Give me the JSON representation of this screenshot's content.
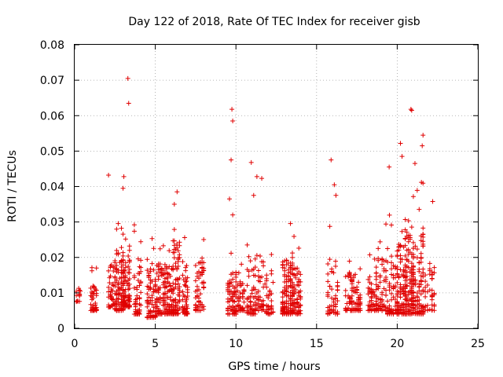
{
  "chart_data": {
    "type": "scatter",
    "title": "Day 122 of 2018, Rate Of TEC Index for receiver gisb",
    "xlabel": "GPS time / hours",
    "ylabel": "ROTI / TECUs",
    "xlim": [
      0,
      25
    ],
    "ylim": [
      0,
      0.08
    ],
    "xticks": [
      0,
      5,
      10,
      15,
      20,
      25
    ],
    "yticks": [
      0,
      0.01,
      0.02,
      0.03,
      0.04,
      0.05,
      0.06,
      0.07,
      0.08
    ],
    "xtick_labels": [
      "0",
      "5",
      "10",
      "15",
      "20",
      "25"
    ],
    "ytick_labels": [
      "0",
      "0.01",
      "0.02",
      "0.03",
      "0.04",
      "0.05",
      "0.06",
      "0.07",
      "0.08"
    ],
    "grid": true,
    "marker": "+",
    "color": "#e00000",
    "clusters": [
      {
        "x0": 0.1,
        "x1": 0.35,
        "ymin": 0.0075,
        "ymax": 0.0125,
        "n": 12
      },
      {
        "x0": 1.0,
        "x1": 1.35,
        "ymin": 0.005,
        "ymax": 0.018,
        "n": 45
      },
      {
        "x0": 2.1,
        "x1": 2.4,
        "ymin": 0.006,
        "ymax": 0.028,
        "n": 35
      },
      {
        "x0": 2.5,
        "x1": 3.0,
        "ymin": 0.005,
        "ymax": 0.035,
        "n": 110
      },
      {
        "x0": 3.0,
        "x1": 3.4,
        "ymin": 0.006,
        "ymax": 0.03,
        "n": 90
      },
      {
        "x0": 3.7,
        "x1": 4.1,
        "ymin": 0.004,
        "ymax": 0.031,
        "n": 60
      },
      {
        "x0": 4.5,
        "x1": 5.0,
        "ymin": 0.003,
        "ymax": 0.029,
        "n": 80
      },
      {
        "x0": 5.1,
        "x1": 5.6,
        "ymin": 0.004,
        "ymax": 0.028,
        "n": 90
      },
      {
        "x0": 5.7,
        "x1": 6.1,
        "ymin": 0.004,
        "ymax": 0.026,
        "n": 70
      },
      {
        "x0": 6.1,
        "x1": 6.5,
        "ymin": 0.004,
        "ymax": 0.039,
        "n": 80
      },
      {
        "x0": 6.7,
        "x1": 7.0,
        "ymin": 0.004,
        "ymax": 0.027,
        "n": 50
      },
      {
        "x0": 7.5,
        "x1": 8.0,
        "ymin": 0.005,
        "ymax": 0.028,
        "n": 60
      },
      {
        "x0": 9.5,
        "x1": 10.0,
        "ymin": 0.004,
        "ymax": 0.024,
        "n": 80
      },
      {
        "x0": 10.1,
        "x1": 10.5,
        "ymin": 0.005,
        "ymax": 0.02,
        "n": 40
      },
      {
        "x0": 10.7,
        "x1": 11.2,
        "ymin": 0.004,
        "ymax": 0.026,
        "n": 60
      },
      {
        "x0": 11.2,
        "x1": 11.7,
        "ymin": 0.005,
        "ymax": 0.031,
        "n": 50
      },
      {
        "x0": 11.8,
        "x1": 12.3,
        "ymin": 0.004,
        "ymax": 0.025,
        "n": 40
      },
      {
        "x0": 12.9,
        "x1": 13.5,
        "ymin": 0.004,
        "ymax": 0.031,
        "n": 160
      },
      {
        "x0": 13.5,
        "x1": 14.0,
        "ymin": 0.004,
        "ymax": 0.026,
        "n": 80
      },
      {
        "x0": 15.7,
        "x1": 16.3,
        "ymin": 0.004,
        "ymax": 0.03,
        "n": 60
      },
      {
        "x0": 16.8,
        "x1": 17.2,
        "ymin": 0.005,
        "ymax": 0.024,
        "n": 40
      },
      {
        "x0": 17.2,
        "x1": 17.7,
        "ymin": 0.005,
        "ymax": 0.022,
        "n": 60
      },
      {
        "x0": 18.2,
        "x1": 18.7,
        "ymin": 0.005,
        "ymax": 0.024,
        "n": 60
      },
      {
        "x0": 18.7,
        "x1": 19.3,
        "ymin": 0.005,
        "ymax": 0.03,
        "n": 70
      },
      {
        "x0": 19.4,
        "x1": 20.0,
        "ymin": 0.004,
        "ymax": 0.036,
        "n": 90
      },
      {
        "x0": 20.0,
        "x1": 20.5,
        "ymin": 0.004,
        "ymax": 0.038,
        "n": 100
      },
      {
        "x0": 20.5,
        "x1": 21.0,
        "ymin": 0.004,
        "ymax": 0.043,
        "n": 120
      },
      {
        "x0": 21.0,
        "x1": 21.6,
        "ymin": 0.004,
        "ymax": 0.042,
        "n": 100
      },
      {
        "x0": 21.6,
        "x1": 22.3,
        "ymin": 0.005,
        "ymax": 0.028,
        "n": 50
      }
    ],
    "outliers": [
      {
        "x": 3.3,
        "y": 0.0705
      },
      {
        "x": 3.35,
        "y": 0.0635
      },
      {
        "x": 9.75,
        "y": 0.0618
      },
      {
        "x": 9.8,
        "y": 0.0585
      },
      {
        "x": 9.7,
        "y": 0.0475
      },
      {
        "x": 9.6,
        "y": 0.0365
      },
      {
        "x": 10.95,
        "y": 0.0468
      },
      {
        "x": 11.3,
        "y": 0.0428
      },
      {
        "x": 11.6,
        "y": 0.0423
      },
      {
        "x": 11.1,
        "y": 0.0375
      },
      {
        "x": 2.1,
        "y": 0.0432
      },
      {
        "x": 3.05,
        "y": 0.0428
      },
      {
        "x": 3.0,
        "y": 0.0395
      },
      {
        "x": 6.35,
        "y": 0.0385
      },
      {
        "x": 15.9,
        "y": 0.0475
      },
      {
        "x": 16.1,
        "y": 0.0405
      },
      {
        "x": 16.2,
        "y": 0.0375
      },
      {
        "x": 20.85,
        "y": 0.0618
      },
      {
        "x": 20.9,
        "y": 0.0615
      },
      {
        "x": 21.6,
        "y": 0.0545
      },
      {
        "x": 21.55,
        "y": 0.0515
      },
      {
        "x": 20.2,
        "y": 0.0522
      },
      {
        "x": 20.3,
        "y": 0.0485
      },
      {
        "x": 19.5,
        "y": 0.0455
      },
      {
        "x": 21.1,
        "y": 0.0465
      },
      {
        "x": 21.5,
        "y": 0.0412
      },
      {
        "x": 22.2,
        "y": 0.0358
      },
      {
        "x": 9.8,
        "y": 0.032
      }
    ]
  }
}
